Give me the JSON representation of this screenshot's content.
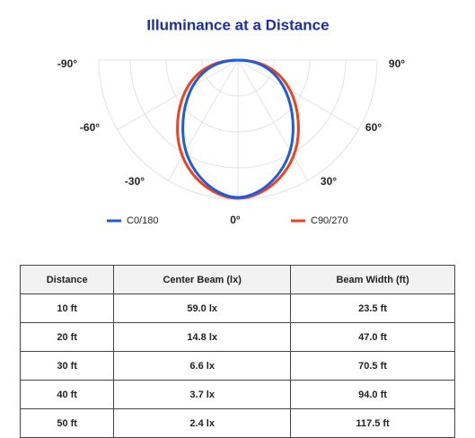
{
  "title": "Illuminance at a Distance",
  "angle_labels": [
    "-90°",
    "90°",
    "-60°",
    "60°",
    "-30°",
    "30°",
    "0°"
  ],
  "legend": [
    "C0/180",
    "C90/270"
  ],
  "table": {
    "header": [
      "Distance",
      "Center Beam (lx)",
      "Beam Width (ft)"
    ],
    "rows": [
      [
        "10 ft",
        "59.0 lx",
        "23.5 ft"
      ],
      [
        "20 ft",
        "14.8 lx",
        "47.0 ft"
      ],
      [
        "30 ft",
        "6.6 lx",
        "70.5 ft"
      ],
      [
        "40 ft",
        "3.7 lx",
        "94.0 ft"
      ],
      [
        "50 ft",
        "2.4 lx",
        "117.5 ft"
      ]
    ]
  }
}
